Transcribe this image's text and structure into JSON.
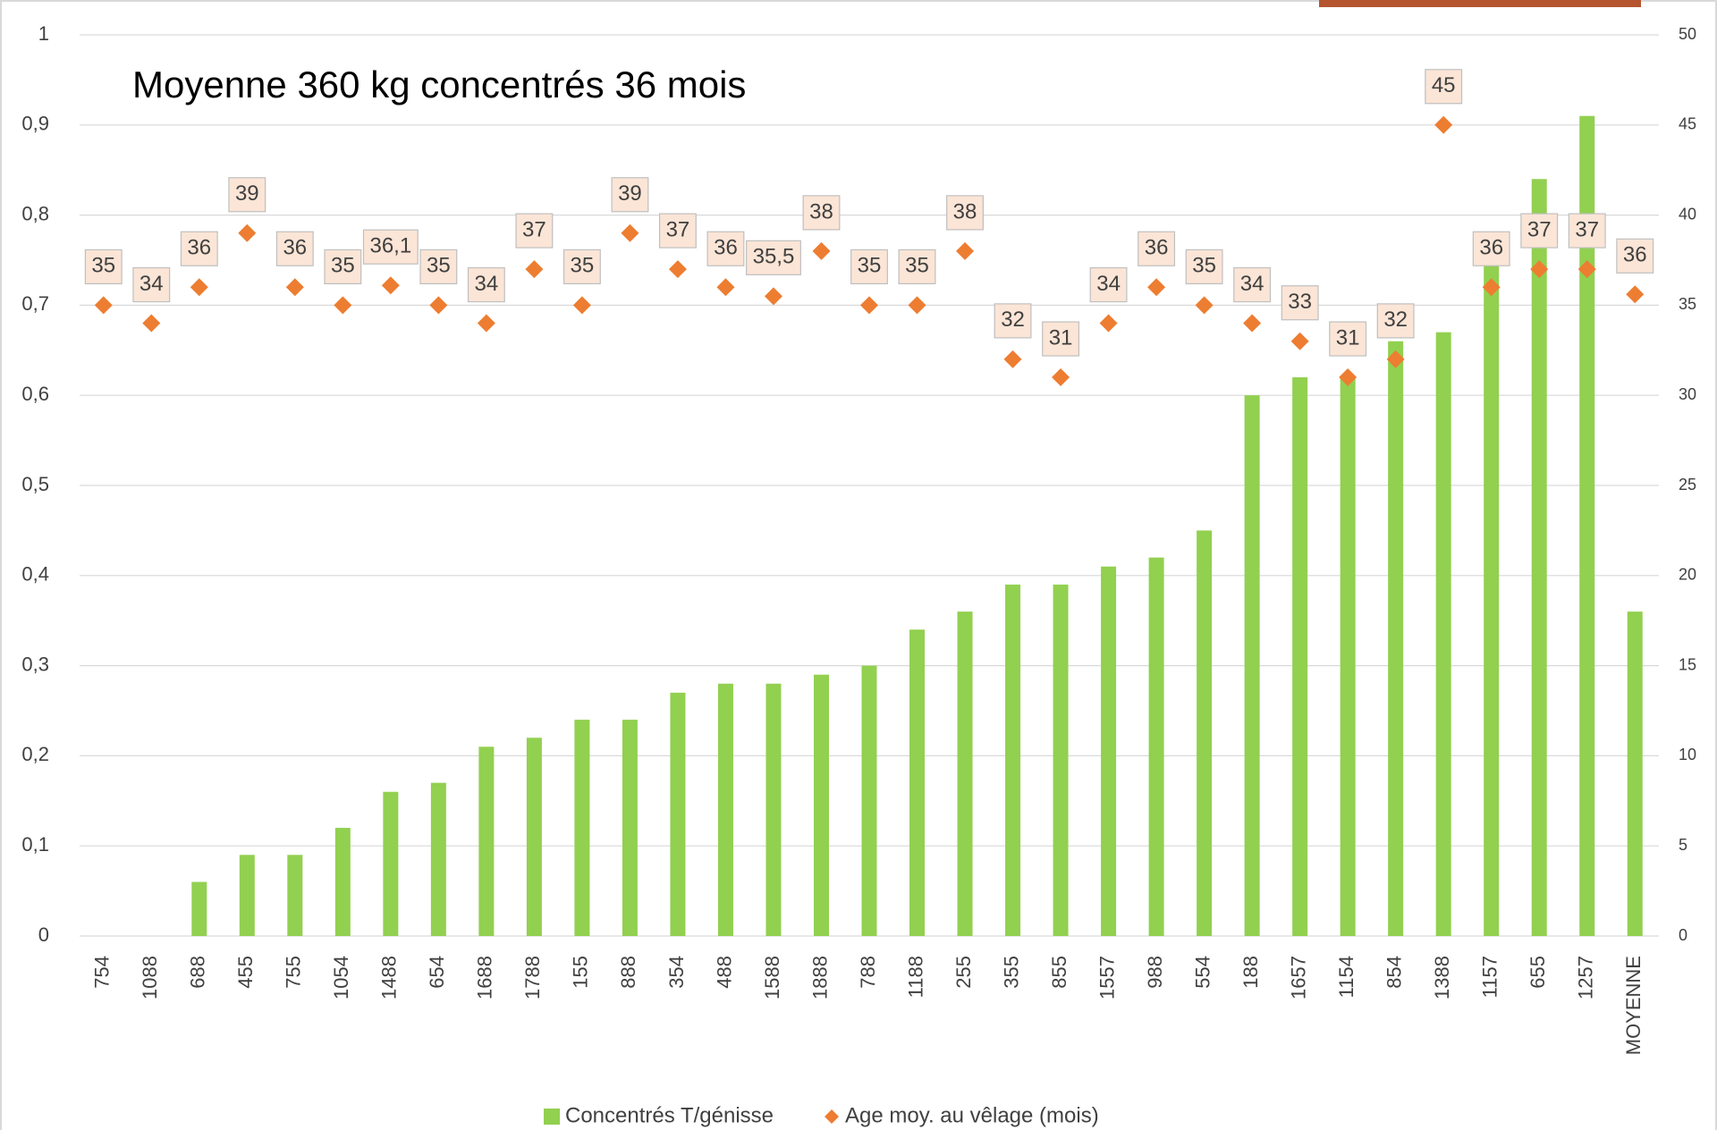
{
  "chart_data": {
    "type": "bar",
    "title": "Moyenne 360 kg concentrés 36 mois",
    "categories": [
      "754",
      "1088",
      "688",
      "455",
      "755",
      "1054",
      "1488",
      "654",
      "1688",
      "1788",
      "155",
      "888",
      "354",
      "488",
      "1588",
      "1888",
      "788",
      "1188",
      "255",
      "355",
      "855",
      "1557",
      "988",
      "554",
      "188",
      "1657",
      "1154",
      "854",
      "1388",
      "1157",
      "655",
      "1257",
      "MOYENNE"
    ],
    "series": [
      {
        "name": "Concentrés T/génisse",
        "type": "bar",
        "color": "#92d050",
        "values": [
          0,
          0,
          0.06,
          0.09,
          0.09,
          0.12,
          0.16,
          0.17,
          0.21,
          0.22,
          0.24,
          0.24,
          0.27,
          0.28,
          0.28,
          0.29,
          0.3,
          0.34,
          0.36,
          0.39,
          0.39,
          0.41,
          0.42,
          0.45,
          0.6,
          0.62,
          0.62,
          0.66,
          0.67,
          0.75,
          0.84,
          0.91,
          0.36
        ]
      },
      {
        "name": "Age moy. au vêlage (mois)",
        "type": "scatter",
        "axis": "y2",
        "color": "#ed7d31",
        "values": [
          35,
          34,
          36,
          39,
          36,
          35,
          36.1,
          35,
          34,
          37,
          35,
          39,
          37,
          36,
          35.5,
          38,
          35,
          35,
          38,
          32,
          31,
          34,
          36,
          35,
          34,
          33,
          31,
          32,
          45,
          36,
          37,
          37,
          35.6
        ],
        "value_labels": [
          "35",
          "34",
          "36",
          "39",
          "36",
          "35",
          "36,1",
          "35",
          "34",
          "37",
          "35",
          "39",
          "37",
          "36",
          "35,5",
          "38",
          "35",
          "35",
          "38",
          "32",
          "31",
          "34",
          "36",
          "35",
          "34",
          "33",
          "31",
          "32",
          "45",
          "36",
          "37",
          "37",
          "36"
        ]
      }
    ],
    "ylim": [
      0,
      1
    ],
    "yticks": [
      0,
      {
        "value": 0.1,
        "label": "0,1"
      },
      {
        "value": 0.2,
        "label": "0,2"
      },
      {
        "value": 0.3,
        "label": "0,3"
      },
      {
        "value": 0.4,
        "label": "0,4"
      },
      {
        "value": 0.5,
        "label": "0,5"
      },
      {
        "value": 0.6,
        "label": "0,6"
      },
      {
        "value": 0.7,
        "label": "0,7"
      },
      {
        "value": 0.8,
        "label": "0,8"
      },
      {
        "value": 0.9,
        "label": "0,9"
      },
      1
    ],
    "y2lim": [
      0,
      50
    ],
    "y2ticks": [
      0,
      5,
      10,
      15,
      20,
      25,
      30,
      35,
      40,
      45,
      50
    ],
    "grid": true,
    "legend": "bottom"
  }
}
